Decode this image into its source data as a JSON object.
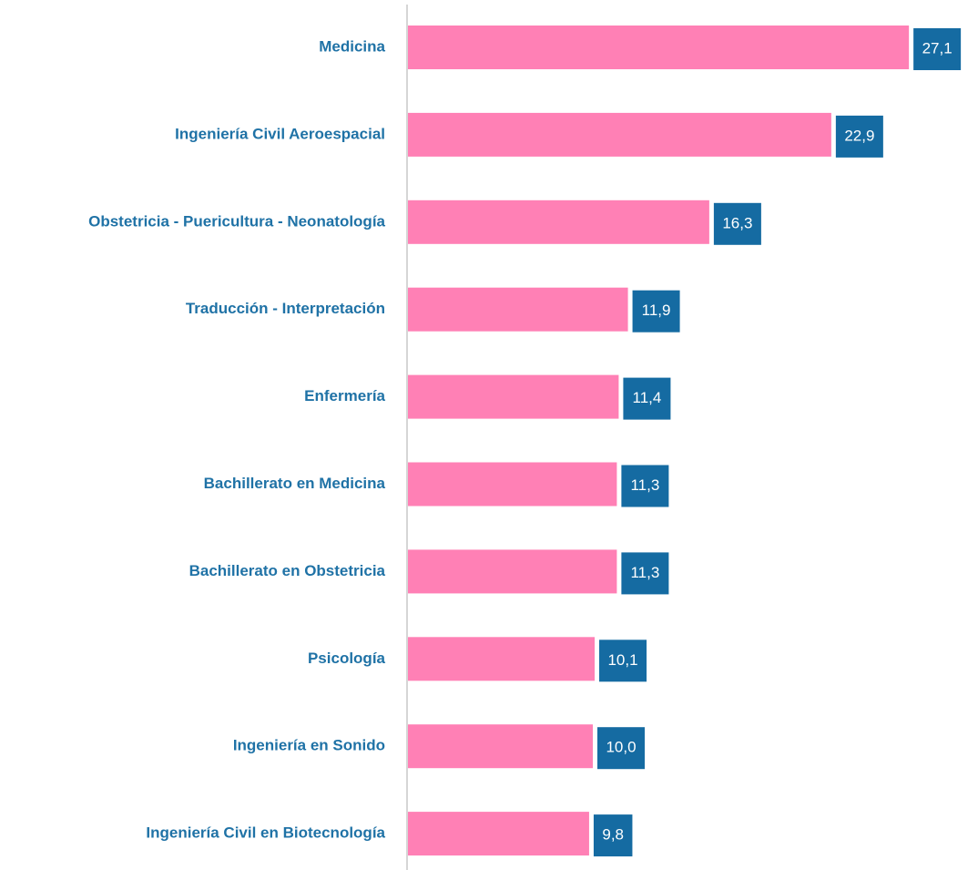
{
  "chart_data": {
    "type": "barh",
    "categories": [
      "Medicina",
      "Ingeniería Civil Aeroespacial",
      "Obstetricia - Puericultura - Neonatología",
      "Traducción - Interpretación",
      "Enfermería",
      "Bachillerato en Medicina",
      "Bachillerato en Obstetricia",
      "Psicología",
      "Ingeniería en Sonido",
      "Ingeniería Civil en Biotecnología"
    ],
    "values": [
      27.1,
      22.9,
      16.3,
      11.9,
      11.4,
      11.3,
      11.3,
      10.1,
      10.0,
      9.8
    ],
    "value_labels": [
      "27,1",
      "22,9",
      "16,3",
      "11,9",
      "11,4",
      "11,3",
      "11,3",
      "10,1",
      "10,0",
      "9,8"
    ],
    "color": "#ff80b5",
    "xlim": [
      0,
      30
    ]
  }
}
